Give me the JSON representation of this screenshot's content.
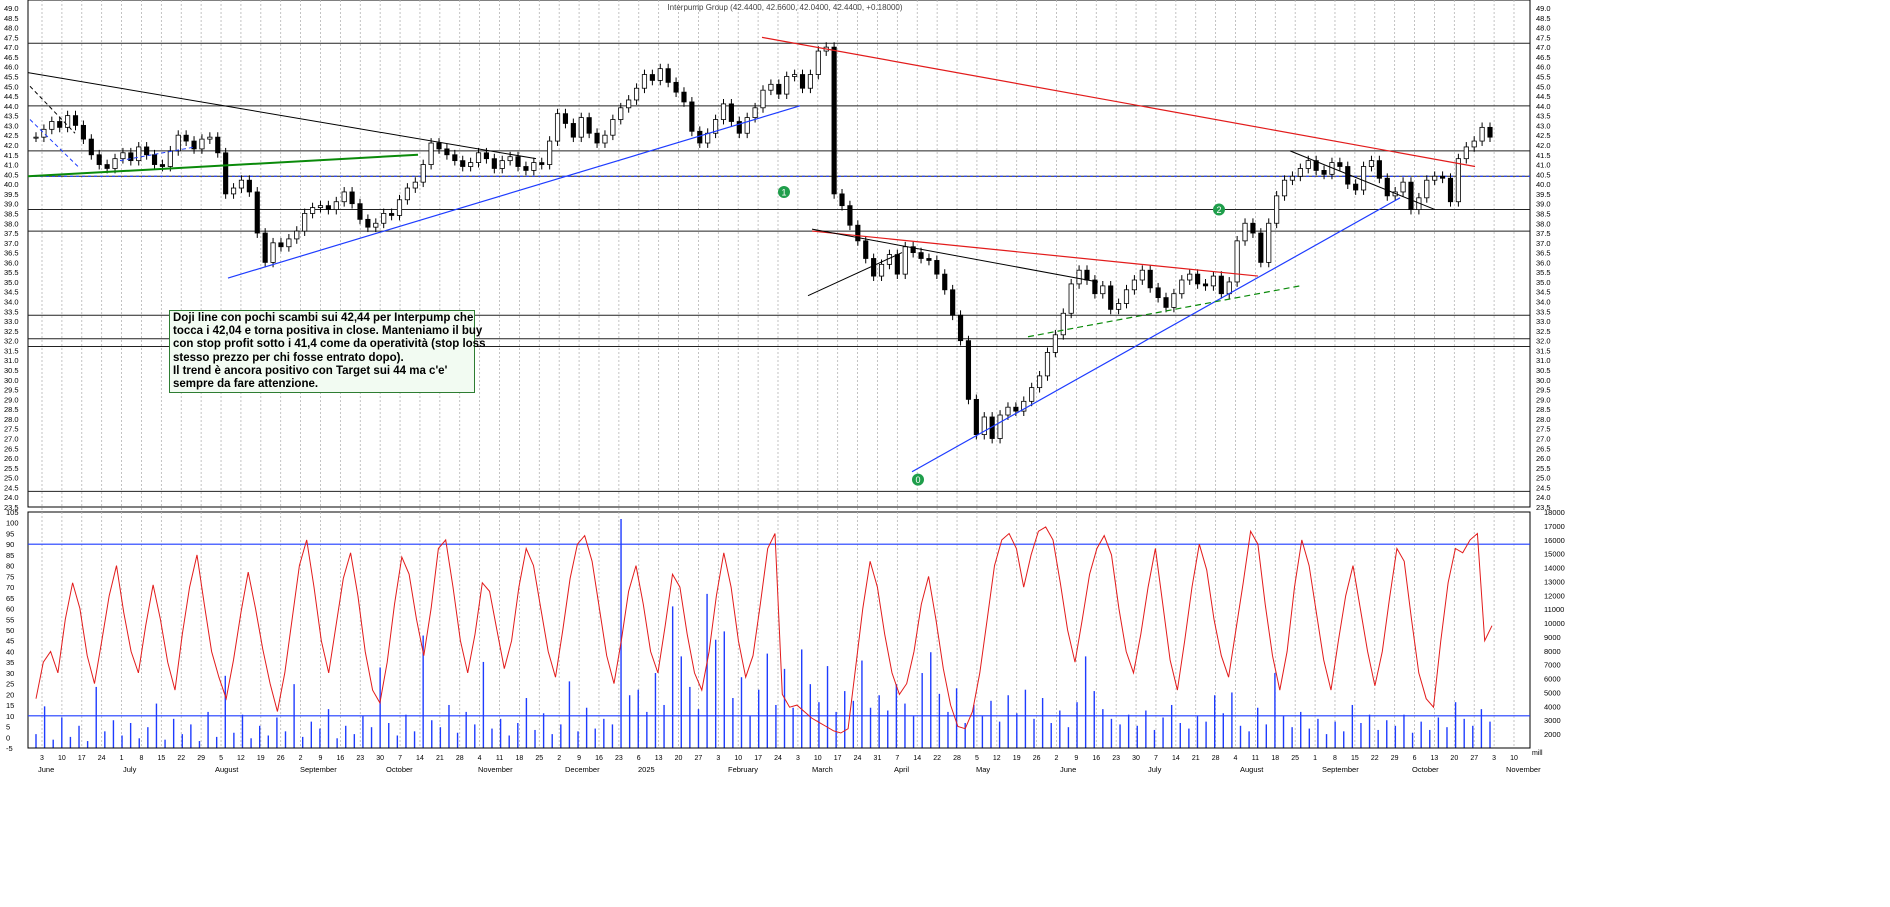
{
  "chart_data": [
    {
      "type": "candlestick",
      "title": "Interpump Group (42.4400, 42.6600, 42.0400, 42.4400, +0.18000)",
      "ylim": [
        23.5,
        49.0
      ],
      "y_ticks": [
        "23.5",
        "24.0",
        "24.5",
        "25.0",
        "25.5",
        "26.0",
        "26.5",
        "27.0",
        "27.5",
        "28.0",
        "28.5",
        "29.0",
        "29.5",
        "30.0",
        "30.5",
        "31.0",
        "31.5",
        "32.0",
        "32.5",
        "33.0",
        "33.5",
        "34.0",
        "34.5",
        "35.0",
        "35.5",
        "36.0",
        "36.5",
        "37.0",
        "37.5",
        "38.0",
        "38.5",
        "39.0",
        "39.5",
        "40.0",
        "40.5",
        "41.0",
        "41.5",
        "42.0",
        "42.5",
        "43.0",
        "43.5",
        "44.0",
        "44.5",
        "45.0",
        "45.5",
        "46.0",
        "46.5",
        "47.0",
        "47.5",
        "48.0",
        "48.5",
        "49.0"
      ],
      "x_months": [
        "June",
        "July",
        "August",
        "September",
        "October",
        "November",
        "December",
        "2025",
        "February",
        "March",
        "April",
        "May",
        "June",
        "July",
        "August",
        "September",
        "October",
        "November"
      ],
      "x_days": [
        "3",
        "10",
        "17",
        "24",
        "1",
        "8",
        "15",
        "22",
        "29",
        "5",
        "12",
        "19",
        "26",
        "2",
        "9",
        "16",
        "23",
        "30",
        "7",
        "14",
        "21",
        "28",
        "4",
        "11",
        "18",
        "25",
        "2",
        "9",
        "16",
        "23",
        "6",
        "13",
        "20",
        "27",
        "3",
        "10",
        "17",
        "24",
        "3",
        "10",
        "17",
        "24",
        "31",
        "7",
        "14",
        "22",
        "28",
        "5",
        "12",
        "19",
        "26",
        "2",
        "9",
        "16",
        "23",
        "30",
        "7",
        "14",
        "21",
        "28",
        "4",
        "11",
        "18",
        "25",
        "1",
        "8",
        "15",
        "22",
        "29",
        "6",
        "13",
        "20",
        "27",
        "3",
        "10"
      ],
      "close_path": [
        42.4,
        42.8,
        43.2,
        42.9,
        43.5,
        43.0,
        42.3,
        41.5,
        41.0,
        40.8,
        41.3,
        41.6,
        41.2,
        41.9,
        41.5,
        41.0,
        40.9,
        41.7,
        42.5,
        42.2,
        41.8,
        42.3,
        42.4,
        41.6,
        39.5,
        39.8,
        40.2,
        39.6,
        37.5,
        36.0,
        37.0,
        36.8,
        37.2,
        37.6,
        38.5,
        38.8,
        38.9,
        38.7,
        39.1,
        39.6,
        39.0,
        38.2,
        37.8,
        38.0,
        38.5,
        38.4,
        39.2,
        39.8,
        40.1,
        41.0,
        42.1,
        41.8,
        41.5,
        41.2,
        40.9,
        41.1,
        41.6,
        41.3,
        40.8,
        41.2,
        41.4,
        40.9,
        40.7,
        41.1,
        41.0,
        42.2,
        43.6,
        43.1,
        42.4,
        43.4,
        42.6,
        42.1,
        42.5,
        43.3,
        43.9,
        44.3,
        44.9,
        45.6,
        45.3,
        45.9,
        45.2,
        44.7,
        44.2,
        42.7,
        42.1,
        42.6,
        43.3,
        44.1,
        43.2,
        42.6,
        43.4,
        43.9,
        44.8,
        45.1,
        44.6,
        45.5,
        45.6,
        44.9,
        45.6,
        46.8,
        47.0,
        39.5,
        38.9,
        37.9,
        37.1,
        36.2,
        35.3,
        35.9,
        36.4,
        35.4,
        36.8,
        36.5,
        36.2,
        36.1,
        35.4,
        34.6,
        33.3,
        32.0,
        29.0,
        27.2,
        28.1,
        27.0,
        28.2,
        28.6,
        28.4,
        28.9,
        29.6,
        30.2,
        31.4,
        32.3,
        33.4,
        34.9,
        35.6,
        35.1,
        34.4,
        34.8,
        33.6,
        33.9,
        34.6,
        35.1,
        35.6,
        34.7,
        34.2,
        33.7,
        34.4,
        35.1,
        35.4,
        34.9,
        34.8,
        35.3,
        34.4,
        35.0,
        37.1,
        38.0,
        37.5,
        36.0,
        38.0,
        39.4,
        40.2,
        40.4,
        40.8,
        41.2,
        40.7,
        40.5,
        41.1,
        40.9,
        40.0,
        39.7,
        40.9,
        41.2,
        40.3,
        39.4,
        39.6,
        40.1,
        38.7,
        39.3,
        40.2,
        40.4,
        40.3,
        39.1,
        41.3,
        41.9,
        42.2,
        42.9,
        42.4
      ],
      "annotations": [
        "1",
        "2",
        "0"
      ],
      "note_lines": [
        "Doji line con pochi scambi sui 42,44 per Interpump che",
        "tocca i 42,04 e torna positiva in close. Manteniamo il buy",
        "con stop profit sotto i 41,4 come da operatività (stop loss",
        "stesso prezzo per chi fosse entrato dopo).",
        "Il trend è ancora positivo con Target sui 44 ma c'e'",
        "sempre da fare attenzione."
      ],
      "horizontal_levels": [
        47.2,
        44.0,
        41.7,
        40.4,
        38.7,
        37.6,
        33.3,
        32.1,
        31.7,
        24.3
      ]
    },
    {
      "type": "line+bar",
      "left_ylim": [
        -5,
        105
      ],
      "left_ticks": [
        "-5",
        "0",
        "5",
        "10",
        "15",
        "20",
        "25",
        "30",
        "35",
        "40",
        "45",
        "50",
        "55",
        "60",
        "65",
        "70",
        "75",
        "80",
        "85",
        "90",
        "95",
        "100",
        "105"
      ],
      "right_ylim": [
        1000,
        18000
      ],
      "right_ticks": [
        "2000",
        "3000",
        "4000",
        "5000",
        "6000",
        "7000",
        "8000",
        "9000",
        "10000",
        "11000",
        "12000",
        "13000",
        "14000",
        "15000",
        "16000",
        "17000",
        "18000"
      ],
      "reference_lines": [
        90,
        10
      ],
      "right_unit_label": "mill",
      "oscillator": [
        18,
        35,
        40,
        30,
        55,
        72,
        60,
        38,
        25,
        45,
        66,
        80,
        58,
        40,
        30,
        52,
        71,
        55,
        35,
        22,
        48,
        70,
        85,
        62,
        40,
        28,
        18,
        36,
        58,
        77,
        60,
        41,
        25,
        12,
        30,
        55,
        80,
        92,
        70,
        45,
        30,
        52,
        74,
        86,
        66,
        40,
        22,
        16,
        35,
        62,
        84,
        76,
        55,
        38,
        60,
        88,
        92,
        70,
        45,
        30,
        48,
        72,
        68,
        50,
        32,
        45,
        70,
        88,
        80,
        60,
        40,
        28,
        50,
        74,
        90,
        94,
        82,
        60,
        38,
        25,
        45,
        68,
        80,
        62,
        40,
        30,
        52,
        76,
        70,
        48,
        30,
        22,
        40,
        66,
        86,
        70,
        45,
        28,
        38,
        62,
        88,
        95,
        20,
        14,
        15,
        12,
        9,
        7,
        5,
        3,
        2,
        4,
        32,
        60,
        82,
        70,
        48,
        30,
        20,
        25,
        40,
        62,
        75,
        55,
        32,
        15,
        5,
        4,
        12,
        30,
        55,
        80,
        92,
        95,
        88,
        70,
        85,
        96,
        98,
        92,
        72,
        50,
        35,
        55,
        76,
        88,
        94,
        85,
        60,
        40,
        30,
        48,
        70,
        88,
        62,
        36,
        22,
        45,
        70,
        90,
        78,
        55,
        38,
        28,
        50,
        72,
        96,
        90,
        62,
        38,
        22,
        40,
        70,
        92,
        80,
        58,
        36,
        22,
        45,
        66,
        80,
        60,
        40,
        24,
        40,
        65,
        88,
        82,
        55,
        30,
        18,
        14,
        45,
        72,
        88,
        86,
        92,
        95,
        45,
        52
      ],
      "volume": [
        2000,
        4000,
        1600,
        3200,
        1800,
        2600,
        1500,
        5400,
        2200,
        3000,
        1900,
        2800,
        1700,
        2500,
        4200,
        1600,
        3100,
        2000,
        2700,
        1500,
        3600,
        1800,
        6200,
        2100,
        3400,
        1700,
        2600,
        1900,
        3200,
        2200,
        5600,
        1800,
        2900,
        2400,
        3800,
        1700,
        2600,
        2000,
        3300,
        2500,
        6800,
        2800,
        1900,
        3400,
        2200,
        9100,
        3000,
        2500,
        4100,
        2100,
        3600,
        2700,
        7200,
        2400,
        3100,
        1900,
        2800,
        4600,
        2300,
        3500,
        2000,
        2700,
        5800,
        2200,
        3900,
        2400,
        3100,
        2700,
        17500,
        4800,
        5200,
        3600,
        6400,
        4100,
        11200,
        7600,
        5400,
        3800,
        12100,
        8800,
        9400,
        4600,
        6100,
        3300,
        5200,
        7800,
        4100,
        6700,
        3900,
        8100,
        5600,
        4300,
        6900,
        3600,
        5100,
        4400,
        7300,
        3900,
        4800,
        3700,
        5600,
        4200,
        3300,
        6400,
        7900,
        4900,
        3600,
        5300,
        2800,
        4100,
        3300,
        4400,
        2900,
        4800,
        3500,
        5200,
        3100,
        4600,
        2800,
        3700,
        2500,
        4300,
        7600,
        5100,
        3800,
        3100,
        2700,
        3400,
        2600,
        3700,
        2300,
        3200,
        4100,
        2800,
        2400,
        3300,
        2900,
        4800,
        3500,
        5000,
        2600,
        2200,
        3900,
        2700,
        6400,
        3300,
        2500,
        3600,
        2400,
        3100,
        2000,
        2900,
        2200,
        4100,
        2800,
        3400,
        2300,
        3000,
        2600,
        3400,
        2100,
        2900,
        2300,
        3200,
        2500,
        4300,
        3100,
        2600,
        3800,
        2900
      ]
    }
  ]
}
